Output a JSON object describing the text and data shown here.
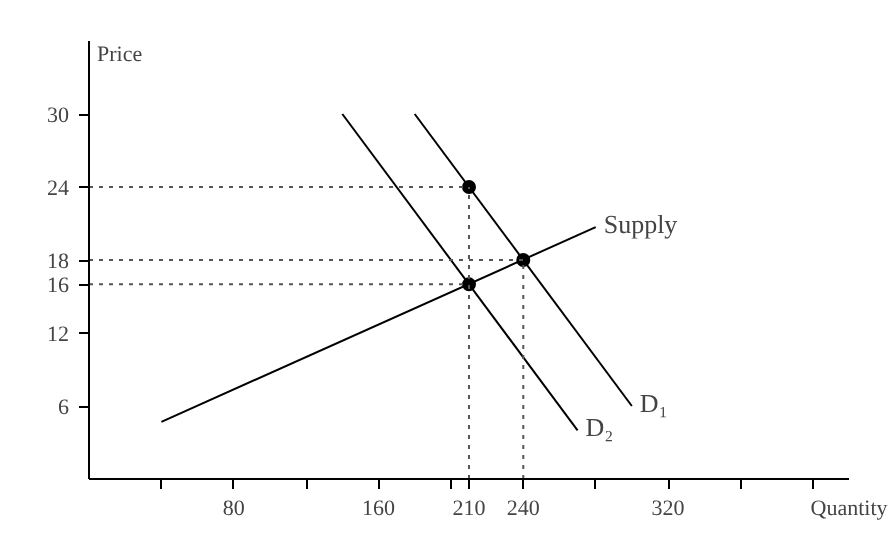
{
  "chart_data": {
    "type": "line",
    "xlabel": "Quantity",
    "ylabel": "Price",
    "xlim": [
      0,
      420
    ],
    "ylim": [
      0,
      36
    ],
    "xticks": [
      {
        "value": 40,
        "label": null
      },
      80,
      {
        "value": 120,
        "label": null
      },
      160,
      {
        "value": 200,
        "label": null
      },
      210,
      240,
      {
        "value": 280,
        "label": null
      },
      320,
      {
        "value": 360,
        "label": null
      },
      {
        "value": 400,
        "label": null
      }
    ],
    "yticks": [
      6,
      12,
      16,
      18,
      24,
      30
    ],
    "grid": false,
    "line_style": "solid",
    "series": [
      {
        "name": "Supply",
        "color": "#000000",
        "x": [
          40,
          280
        ],
        "values": [
          4.7,
          20.7
        ]
      },
      {
        "name": "D₁",
        "color": "#000000",
        "x": [
          180,
          300
        ],
        "values": [
          30,
          6
        ]
      },
      {
        "name": "D₂",
        "color": "#000000",
        "x": [
          140,
          270
        ],
        "values": [
          30,
          4
        ]
      },
      {
        "type": "scatter",
        "marker": "circle",
        "color": "#000000",
        "x": [
          210,
          240,
          210
        ],
        "values": [
          24,
          18,
          16
        ]
      },
      {
        "line_style": "dotted",
        "color": "#555555",
        "x": [
          0,
          210
        ],
        "values": [
          24,
          24
        ]
      },
      {
        "line_style": "dotted",
        "color": "#555555",
        "x": [
          0,
          240
        ],
        "values": [
          18,
          18
        ]
      },
      {
        "line_style": "dotted",
        "color": "#555555",
        "x": [
          0,
          210
        ],
        "values": [
          16,
          16
        ]
      },
      {
        "line_style": "dotted",
        "color": "#555555",
        "x": [
          210,
          210
        ],
        "values": [
          0,
          24
        ]
      },
      {
        "line_style": "dotted",
        "color": "#555555",
        "x": [
          240,
          240
        ],
        "values": [
          0,
          18
        ]
      }
    ]
  }
}
